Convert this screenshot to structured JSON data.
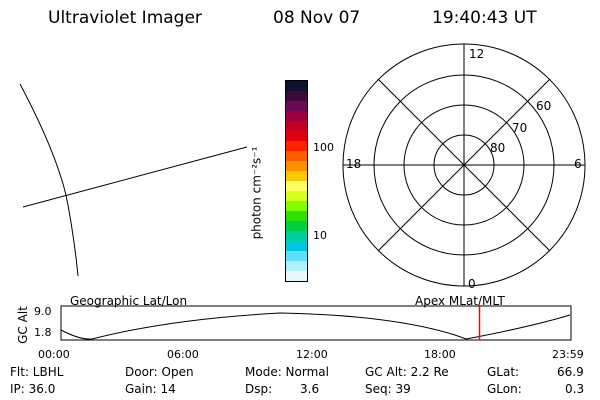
{
  "header": {
    "instrument": "Ultraviolet Imager",
    "date": "08 Nov 07",
    "time": "19:40:43 UT"
  },
  "colorbar": {
    "unit_label": "photon cm⁻²s⁻¹",
    "tick_100": "100",
    "tick_10": "10",
    "colors": [
      "#101030",
      "#3a0a3a",
      "#6a0a55",
      "#9a0040",
      "#c00020",
      "#e00010",
      "#ff2000",
      "#ff5a00",
      "#ff9000",
      "#ffc800",
      "#ffff60",
      "#d8ff20",
      "#80ff00",
      "#30e000",
      "#00d040",
      "#00d0a0",
      "#00c8e0",
      "#60e0ff",
      "#b0f0ff",
      "#e8f8ff"
    ]
  },
  "polar_plot": {
    "label_top": "12",
    "label_left": "18",
    "label_right": "6",
    "label_bottom": "0",
    "ring_60": "60",
    "ring_70": "70",
    "ring_80": "80"
  },
  "timeline": {
    "left_label": "Geographic Lat/Lon",
    "right_label": "Apex MLat/MLT",
    "axis_label": "GC Alt",
    "y_high": "9.0",
    "y_low": "1.8",
    "x_ticks": [
      "00:00",
      "06:00",
      "12:00",
      "18:00",
      "23:59"
    ],
    "marker_time_hours": 19.68,
    "marker_color": "#ff0000"
  },
  "status": {
    "filter": "Flt: LBHL",
    "ip": "IP: 36.0",
    "door": "Door: Open",
    "gain": "Gain: 14",
    "mode": "Mode: Normal",
    "dsp_label": "Dsp:",
    "dsp_value": "3.6",
    "gc_alt": "GC Alt: 2.2 Re",
    "seq": "Seq: 39",
    "glat_label": "GLat:",
    "glat_value": "66.9",
    "glon_label": "GLon:",
    "glon_value": "0.3"
  }
}
